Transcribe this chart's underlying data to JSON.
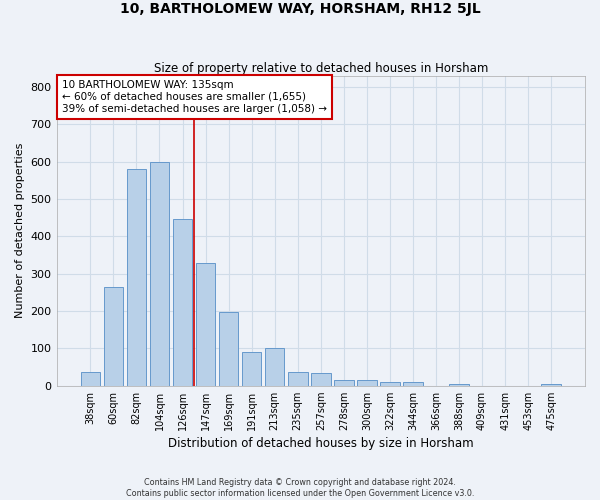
{
  "title": "10, BARTHOLOMEW WAY, HORSHAM, RH12 5JL",
  "subtitle": "Size of property relative to detached houses in Horsham",
  "xlabel": "Distribution of detached houses by size in Horsham",
  "ylabel": "Number of detached properties",
  "footer_line1": "Contains HM Land Registry data © Crown copyright and database right 2024.",
  "footer_line2": "Contains public sector information licensed under the Open Government Licence v3.0.",
  "categories": [
    "38sqm",
    "60sqm",
    "82sqm",
    "104sqm",
    "126sqm",
    "147sqm",
    "169sqm",
    "191sqm",
    "213sqm",
    "235sqm",
    "257sqm",
    "278sqm",
    "300sqm",
    "322sqm",
    "344sqm",
    "366sqm",
    "388sqm",
    "409sqm",
    "431sqm",
    "453sqm",
    "475sqm"
  ],
  "values": [
    38,
    265,
    580,
    600,
    447,
    328,
    197,
    90,
    100,
    38,
    33,
    14,
    15,
    10,
    9,
    0,
    5,
    0,
    0,
    0,
    5
  ],
  "bar_color": "#b8d0e8",
  "bar_edge_color": "#6699cc",
  "grid_color": "#d0dce8",
  "background_color": "#eef2f8",
  "property_line_x": 4.5,
  "property_line_color": "#cc0000",
  "annotation_text": "10 BARTHOLOMEW WAY: 135sqm\n← 60% of detached houses are smaller (1,655)\n39% of semi-detached houses are larger (1,058) →",
  "annotation_box_color": "#ffffff",
  "annotation_box_edge": "#cc0000",
  "ylim": [
    0,
    830
  ],
  "yticks": [
    0,
    100,
    200,
    300,
    400,
    500,
    600,
    700,
    800
  ]
}
